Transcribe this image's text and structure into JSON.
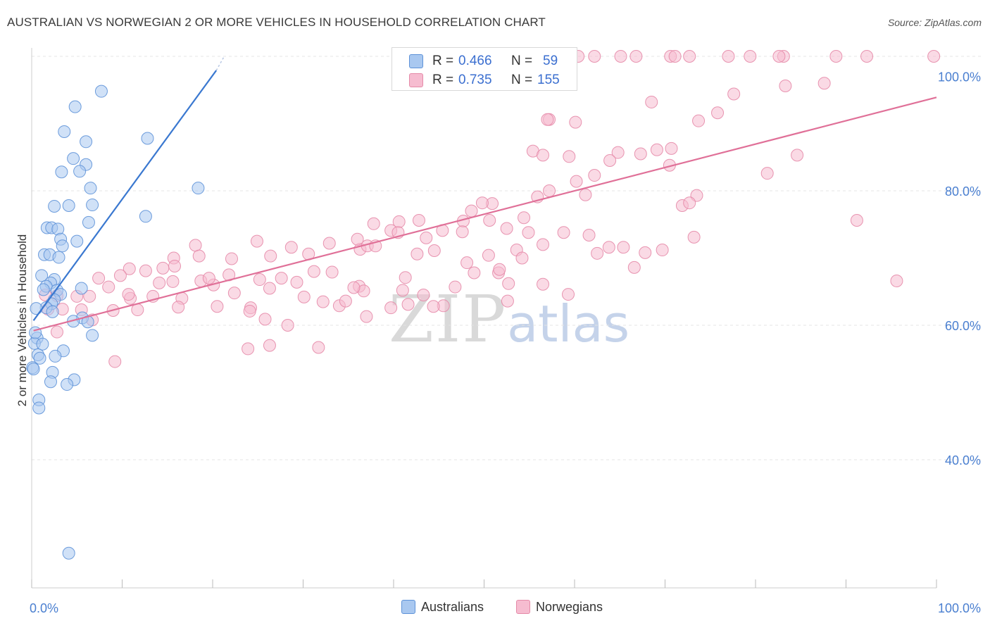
{
  "title": "AUSTRALIAN VS NORWEGIAN 2 OR MORE VEHICLES IN HOUSEHOLD CORRELATION CHART",
  "source": "Source: ZipAtlas.com",
  "watermark": {
    "zip": "ZIP",
    "atlas": "atlas"
  },
  "legend": {
    "series1": {
      "r_label": "R =",
      "r_value": "0.466",
      "n_label": "N =",
      "n_value": "59"
    },
    "series2": {
      "r_label": "R =",
      "r_value": "0.735",
      "n_label": "N =",
      "n_value": "155"
    }
  },
  "bottom_legend": [
    "Australians",
    "Norwegians"
  ],
  "colors": {
    "blue_fill": "#a9c8f0",
    "blue_stroke": "#5e92d8",
    "blue_line": "#3a78d0",
    "pink_fill": "#f6bcd0",
    "pink_stroke": "#e58aa8",
    "pink_line": "#e07098",
    "axis_text": "#4a7fd0",
    "grid": "#e4e4e4"
  },
  "chart_data": {
    "type": "scatter",
    "title": "AUSTRALIAN VS NORWEGIAN 2 OR MORE VEHICLES IN HOUSEHOLD CORRELATION CHART",
    "xlabel": "",
    "ylabel": "2 or more Vehicles in Household",
    "xlim": [
      0,
      100
    ],
    "ylim": [
      20,
      102
    ],
    "x_tick_labels": [
      "0.0%",
      "100.0%"
    ],
    "y_ticks": [
      40,
      60,
      80,
      100
    ],
    "y_tick_labels": [
      "40.0%",
      "60.0%",
      "80.0%",
      "100.0%"
    ],
    "series": [
      {
        "name": "Australians",
        "r": 0.466,
        "n": 59,
        "trend": {
          "x": [
            0.2,
            20.4
          ],
          "y": [
            60.7,
            97.9
          ]
        },
        "trend_dashed_end": {
          "x": [
            20.4,
            21.2
          ],
          "y": [
            97.9,
            99.8
          ]
        },
        "points": [
          [
            7.7,
            94.8
          ],
          [
            4.8,
            92.5
          ],
          [
            3.6,
            88.8
          ],
          [
            12.8,
            87.8
          ],
          [
            6.0,
            87.3
          ],
          [
            4.6,
            84.8
          ],
          [
            6.0,
            83.9
          ],
          [
            3.3,
            82.8
          ],
          [
            5.3,
            82.9
          ],
          [
            6.5,
            80.4
          ],
          [
            18.4,
            80.4
          ],
          [
            2.5,
            77.7
          ],
          [
            4.1,
            77.8
          ],
          [
            6.7,
            77.9
          ],
          [
            12.6,
            76.2
          ],
          [
            6.3,
            75.3
          ],
          [
            1.7,
            74.5
          ],
          [
            2.2,
            74.5
          ],
          [
            2.9,
            74.3
          ],
          [
            3.2,
            72.8
          ],
          [
            5.0,
            72.5
          ],
          [
            3.4,
            71.8
          ],
          [
            1.4,
            70.5
          ],
          [
            2.0,
            70.5
          ],
          [
            3.0,
            70.1
          ],
          [
            1.1,
            67.4
          ],
          [
            2.5,
            66.8
          ],
          [
            2.1,
            66.3
          ],
          [
            1.6,
            65.8
          ],
          [
            1.3,
            65.3
          ],
          [
            2.8,
            65.2
          ],
          [
            3.2,
            64.6
          ],
          [
            5.5,
            65.5
          ],
          [
            2.5,
            63.8
          ],
          [
            2.2,
            63.2
          ],
          [
            1.6,
            62.6
          ],
          [
            0.5,
            62.5
          ],
          [
            2.3,
            62.0
          ],
          [
            5.6,
            61.1
          ],
          [
            6.2,
            60.5
          ],
          [
            4.6,
            60.6
          ],
          [
            6.7,
            58.5
          ],
          [
            0.6,
            58.1
          ],
          [
            0.3,
            57.3
          ],
          [
            1.2,
            57.2
          ],
          [
            3.5,
            56.2
          ],
          [
            0.7,
            55.6
          ],
          [
            2.6,
            55.4
          ],
          [
            0.9,
            55.1
          ],
          [
            0.1,
            53.7
          ],
          [
            2.3,
            53.0
          ],
          [
            2.1,
            51.6
          ],
          [
            4.7,
            51.9
          ],
          [
            3.9,
            51.2
          ],
          [
            0.8,
            48.9
          ],
          [
            0.8,
            47.7
          ],
          [
            4.1,
            26.1
          ],
          [
            0.2,
            53.5
          ],
          [
            0.4,
            58.9
          ]
        ]
      },
      {
        "name": "Norwegians",
        "r": 0.735,
        "n": 155,
        "trend": {
          "x": [
            0.2,
            100
          ],
          "y": [
            59.2,
            93.9
          ]
        },
        "points": [
          [
            60.4,
            100
          ],
          [
            62.2,
            100
          ],
          [
            65.1,
            100
          ],
          [
            70.6,
            100
          ],
          [
            72.7,
            100
          ],
          [
            66.8,
            100
          ],
          [
            79.4,
            100
          ],
          [
            71.1,
            100
          ],
          [
            77.0,
            100
          ],
          [
            83.1,
            100
          ],
          [
            88.9,
            100
          ],
          [
            82.6,
            100
          ],
          [
            99.7,
            100
          ],
          [
            92.3,
            100
          ],
          [
            87.6,
            96.0
          ],
          [
            83.3,
            95.6
          ],
          [
            77.6,
            94.4
          ],
          [
            68.5,
            93.2
          ],
          [
            75.8,
            91.6
          ],
          [
            73.7,
            90.4
          ],
          [
            57.2,
            90.6
          ],
          [
            57.0,
            90.6
          ],
          [
            60.1,
            90.2
          ],
          [
            55.4,
            85.9
          ],
          [
            56.5,
            85.3
          ],
          [
            59.4,
            85.1
          ],
          [
            67.3,
            85.5
          ],
          [
            69.1,
            86.1
          ],
          [
            70.7,
            86.3
          ],
          [
            64.8,
            85.7
          ],
          [
            70.5,
            83.8
          ],
          [
            63.9,
            84.5
          ],
          [
            84.6,
            85.3
          ],
          [
            62.2,
            82.3
          ],
          [
            60.2,
            81.4
          ],
          [
            61.2,
            79.4
          ],
          [
            73.5,
            79.3
          ],
          [
            71.9,
            77.8
          ],
          [
            72.7,
            78.2
          ],
          [
            81.3,
            82.6
          ],
          [
            57.2,
            80.0
          ],
          [
            55.9,
            79.1
          ],
          [
            50.9,
            78.1
          ],
          [
            49.8,
            78.2
          ],
          [
            48.6,
            77.0
          ],
          [
            47.7,
            75.5
          ],
          [
            42.8,
            75.6
          ],
          [
            40.6,
            75.4
          ],
          [
            37.8,
            75.1
          ],
          [
            39.7,
            74.1
          ],
          [
            40.5,
            73.8
          ],
          [
            45.4,
            74.1
          ],
          [
            47.6,
            73.9
          ],
          [
            43.6,
            73.0
          ],
          [
            50.6,
            75.6
          ],
          [
            52.5,
            74.4
          ],
          [
            54.4,
            76.0
          ],
          [
            54.9,
            73.8
          ],
          [
            73.2,
            73.1
          ],
          [
            91.2,
            75.6
          ],
          [
            95.6,
            66.6
          ],
          [
            69.7,
            71.2
          ],
          [
            48.1,
            69.3
          ],
          [
            44.5,
            71.1
          ],
          [
            42.6,
            70.6
          ],
          [
            36.3,
            71.3
          ],
          [
            36.0,
            72.8
          ],
          [
            37.1,
            71.8
          ],
          [
            32.9,
            72.2
          ],
          [
            30.6,
            70.6
          ],
          [
            28.7,
            71.6
          ],
          [
            24.9,
            72.5
          ],
          [
            22.1,
            69.9
          ],
          [
            18.1,
            71.9
          ],
          [
            18.5,
            70.3
          ],
          [
            15.7,
            70.0
          ],
          [
            15.8,
            68.8
          ],
          [
            12.6,
            68.1
          ],
          [
            14.5,
            68.5
          ],
          [
            10.8,
            68.4
          ],
          [
            7.4,
            67.0
          ],
          [
            10.9,
            64.0
          ],
          [
            13.4,
            64.3
          ],
          [
            16.6,
            64.0
          ],
          [
            14.1,
            66.3
          ],
          [
            18.7,
            66.6
          ],
          [
            20.1,
            66.0
          ],
          [
            19.6,
            67.0
          ],
          [
            21.8,
            67.5
          ],
          [
            22.4,
            64.8
          ],
          [
            25.2,
            66.8
          ],
          [
            26.3,
            65.5
          ],
          [
            30.1,
            64.2
          ],
          [
            32.2,
            63.5
          ],
          [
            34.0,
            62.9
          ],
          [
            28.3,
            60.0
          ],
          [
            24.2,
            62.6
          ],
          [
            20.5,
            62.8
          ],
          [
            16.2,
            62.7
          ],
          [
            11.7,
            62.3
          ],
          [
            10.7,
            64.6
          ],
          [
            8.5,
            65.7
          ],
          [
            9.0,
            62.2
          ],
          [
            6.4,
            64.3
          ],
          [
            5.5,
            62.3
          ],
          [
            3.4,
            62.4
          ],
          [
            2.8,
            64.4
          ],
          [
            1.5,
            64.5
          ],
          [
            1.8,
            62.4
          ],
          [
            5.0,
            64.3
          ],
          [
            6.7,
            60.8
          ],
          [
            9.2,
            54.6
          ],
          [
            23.9,
            56.5
          ],
          [
            24.1,
            62.1
          ],
          [
            25.8,
            60.9
          ],
          [
            26.3,
            57.0
          ],
          [
            31.7,
            56.7
          ],
          [
            36.2,
            65.8
          ],
          [
            34.7,
            63.6
          ],
          [
            36.7,
            65.1
          ],
          [
            39.7,
            62.6
          ],
          [
            41.0,
            65.2
          ],
          [
            41.6,
            63.1
          ],
          [
            43.3,
            64.5
          ],
          [
            45.5,
            62.9
          ],
          [
            41.3,
            67.1
          ],
          [
            46.8,
            65.7
          ],
          [
            52.6,
            63.6
          ],
          [
            48.9,
            67.8
          ],
          [
            51.6,
            67.8
          ],
          [
            50.5,
            70.4
          ],
          [
            53.6,
            71.2
          ],
          [
            54.2,
            70.0
          ],
          [
            56.5,
            72.0
          ],
          [
            58.8,
            73.8
          ],
          [
            61.6,
            73.4
          ],
          [
            62.5,
            70.7
          ],
          [
            63.8,
            71.6
          ],
          [
            65.4,
            71.6
          ],
          [
            66.6,
            68.6
          ],
          [
            67.8,
            70.8
          ],
          [
            59.3,
            64.6
          ],
          [
            56.5,
            66.1
          ],
          [
            52.7,
            66.2
          ],
          [
            51.7,
            68.3
          ],
          [
            44.4,
            62.8
          ],
          [
            37.0,
            61.3
          ],
          [
            35.6,
            65.6
          ],
          [
            38.0,
            71.8
          ],
          [
            31.2,
            68.0
          ],
          [
            33.2,
            67.9
          ],
          [
            29.3,
            66.4
          ],
          [
            27.6,
            67.0
          ],
          [
            26.4,
            70.3
          ],
          [
            15.6,
            66.5
          ],
          [
            9.8,
            67.4
          ],
          [
            2.8,
            59.0
          ]
        ]
      }
    ]
  }
}
